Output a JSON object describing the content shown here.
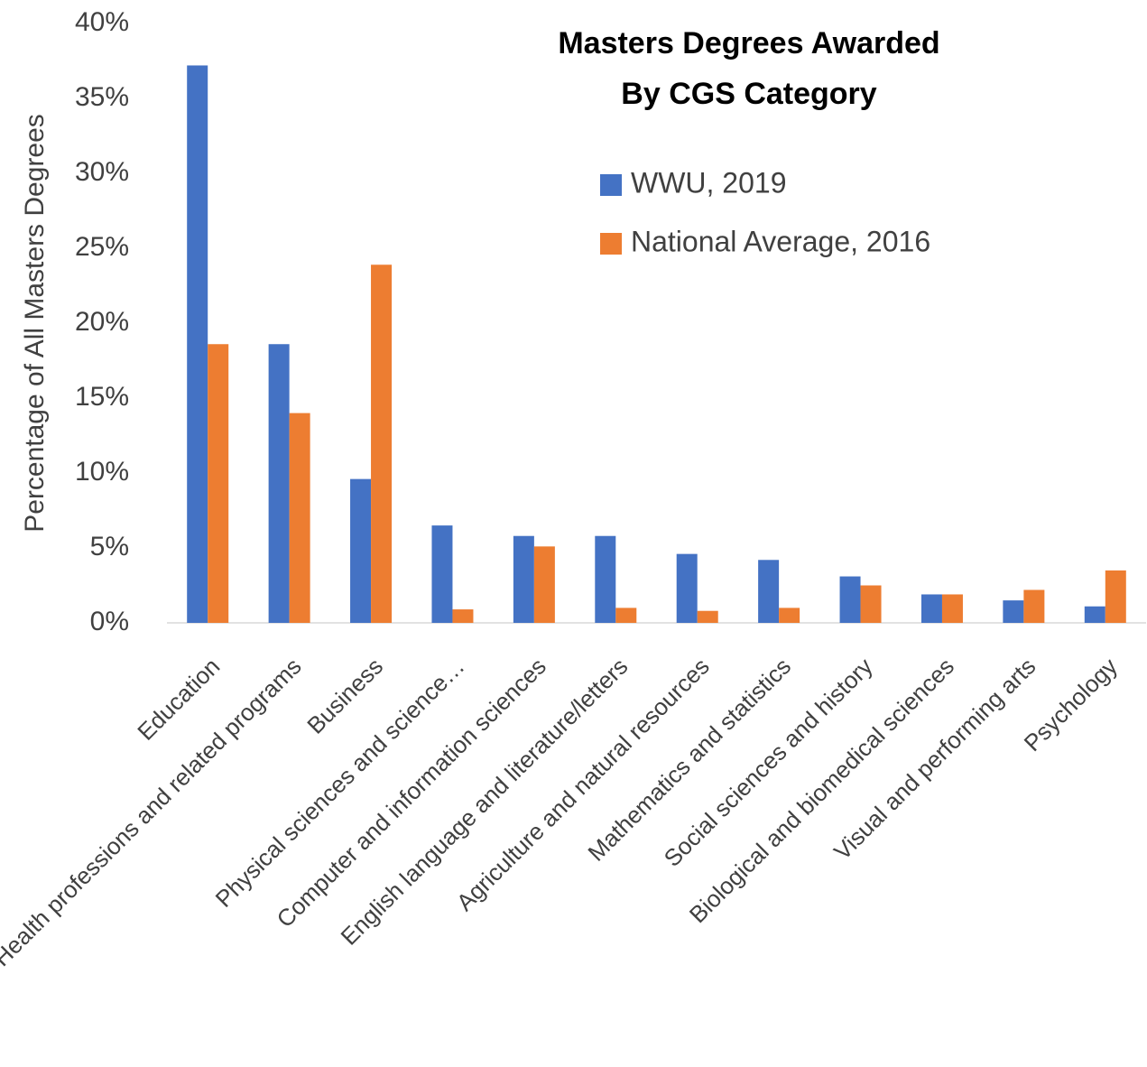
{
  "chart_data": {
    "type": "bar",
    "title": [
      "Masters Degrees Awarded",
      "By CGS Category"
    ],
    "ylabel": "Percentage of All Masters Degrees",
    "categories": [
      "Education",
      "Health professions and related programs",
      "Business",
      "Physical sciences and science…",
      "Computer and information sciences",
      "English language and literature/letters",
      "Agriculture and natural resources",
      "Mathematics and statistics",
      "Social sciences and history",
      "Biological and biomedical sciences",
      "Visual and performing arts",
      "Psychology"
    ],
    "series": [
      {
        "name": "WWU, 2019",
        "color": "#4472c4",
        "values": [
          37.2,
          18.6,
          9.6,
          6.5,
          5.8,
          5.8,
          4.6,
          4.2,
          3.1,
          1.9,
          1.5,
          1.1
        ]
      },
      {
        "name": "National Average, 2016",
        "color": "#ed7d31",
        "values": [
          18.6,
          14.0,
          23.9,
          0.9,
          5.1,
          1.0,
          0.8,
          1.0,
          2.5,
          1.9,
          2.2,
          3.5
        ]
      }
    ],
    "ylim": [
      0,
      40
    ],
    "yticks": [
      {
        "value": 0,
        "label": "0%"
      },
      {
        "value": 5,
        "label": "5%"
      },
      {
        "value": 10,
        "label": "10%"
      },
      {
        "value": 15,
        "label": "15%"
      },
      {
        "value": 20,
        "label": "20%"
      },
      {
        "value": 25,
        "label": "25%"
      },
      {
        "value": 30,
        "label": "30%"
      },
      {
        "value": 35,
        "label": "35%"
      },
      {
        "value": 40,
        "label": "40%"
      }
    ],
    "grid": false,
    "legend": "top-right"
  }
}
